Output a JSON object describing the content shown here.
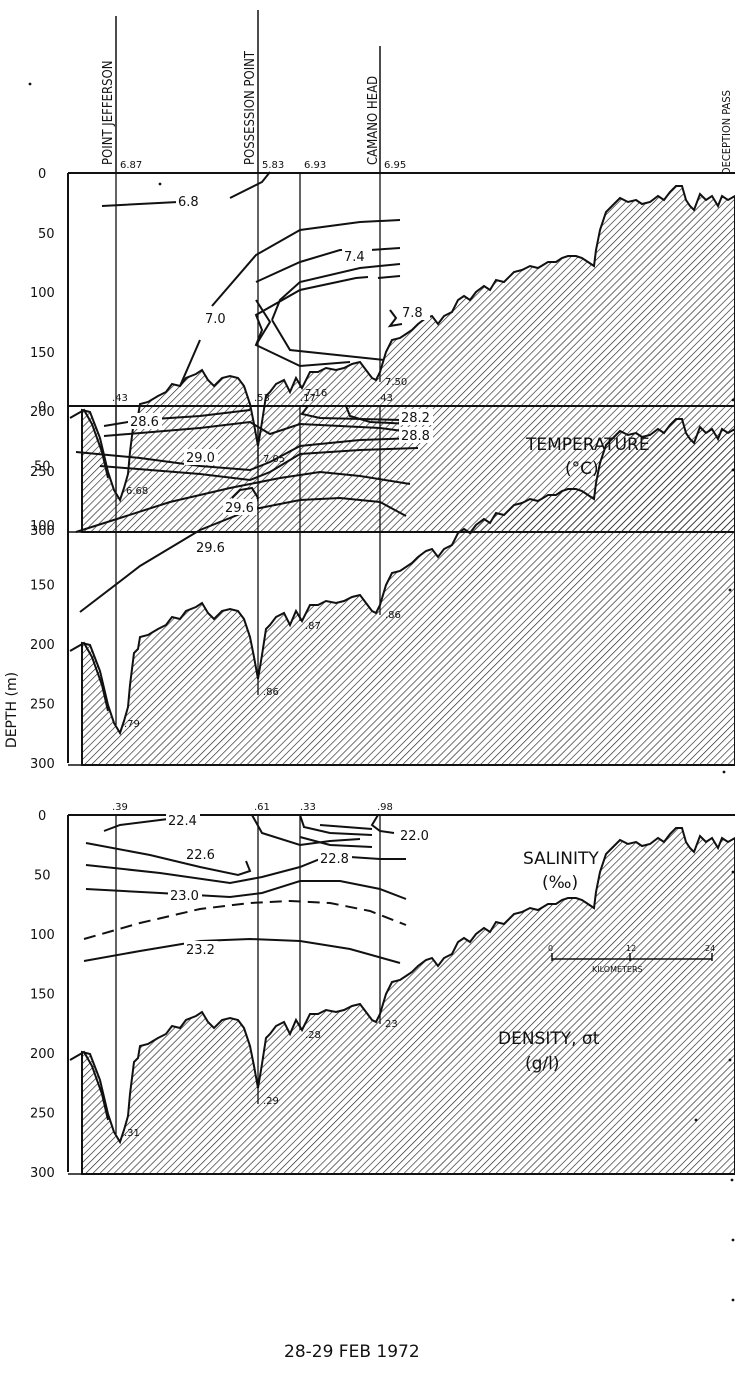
{
  "chart_data": {
    "type": "contour-section",
    "date": "28-29 FEB 1972",
    "ylabel": "DEPTH (m)",
    "depth_ticks": [
      "0",
      "50",
      "100",
      "150",
      "200",
      "250",
      "300"
    ],
    "ylim": [
      0,
      300
    ],
    "stations": [
      {
        "name": "POINT JEFFERSON"
      },
      {
        "name": "POSSESSION POINT"
      },
      {
        "name": "CAMANO HEAD"
      },
      {
        "name": "DECEPTION PASS"
      }
    ],
    "scale_bar": {
      "label": "KILOMETERS",
      "ticks": [
        "0",
        "12",
        "24"
      ],
      "km": [
        0,
        12,
        24
      ]
    },
    "panels": [
      {
        "id": "temperature",
        "title_line1": "TEMPERATURE",
        "title_line2": "(°C)",
        "surface_values": [
          "6.87",
          "5.83",
          "6.93",
          "6.95"
        ],
        "bottom_values": [
          "6.68",
          "7.05",
          "7.16",
          "7.50"
        ],
        "isolines": [
          6.8,
          7.0,
          7.4,
          7.8
        ],
        "isoline_labels": [
          "6.8",
          "7.0",
          "7.4",
          "7.8"
        ]
      },
      {
        "id": "salinity",
        "title_line1": "SALINITY",
        "title_line2": "(‰)",
        "surface_values": [
          ".43",
          ".53",
          ".17",
          ".43"
        ],
        "bottom_values": [
          ".79",
          ".86",
          ".87",
          ".86"
        ],
        "isolines": [
          28.2,
          28.6,
          28.8,
          29.0,
          29.6,
          29.6
        ],
        "isoline_labels": [
          "28.2",
          "28.6",
          "28.8",
          "29.0",
          "29.6",
          "29.6"
        ]
      },
      {
        "id": "density",
        "title_line1": "DENSITY, σt",
        "title_line2": "(g/l)",
        "surface_values": [
          ".39",
          ".61",
          ".33",
          ".98"
        ],
        "bottom_values": [
          ".31",
          ".29",
          ".28",
          "23"
        ],
        "isolines": [
          22.0,
          22.4,
          22.6,
          22.8,
          23.0,
          23.2
        ],
        "isoline_labels": [
          "22.0",
          "22.4",
          "22.6",
          "22.8",
          "23.0",
          "23.2"
        ]
      }
    ]
  }
}
